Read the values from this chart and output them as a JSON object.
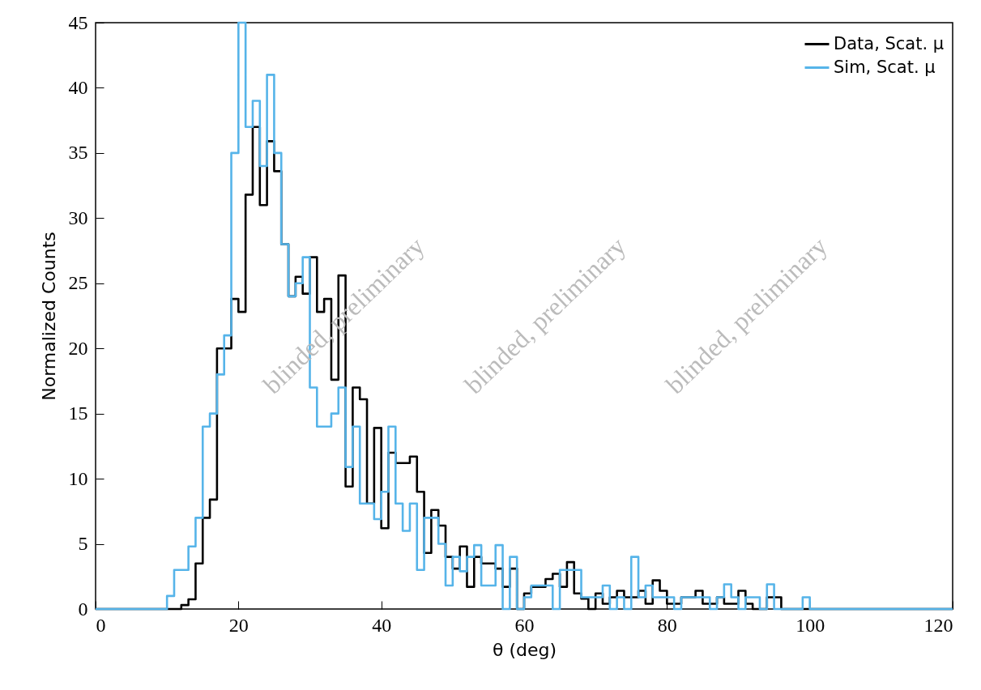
{
  "chart_data": {
    "type": "histogram",
    "xlabel": "θ (deg)",
    "ylabel": "Normalized Counts",
    "bins": [
      0,
      1,
      2,
      3,
      4,
      5,
      6,
      7,
      8,
      9,
      10,
      11,
      12,
      13,
      14,
      15,
      16,
      17,
      18,
      19,
      20,
      21,
      22,
      23,
      24,
      25,
      26,
      27,
      28,
      29,
      30,
      31,
      32,
      33,
      34,
      35,
      36,
      37,
      38,
      39,
      40,
      41,
      42,
      43,
      44,
      45,
      46,
      47,
      48,
      49,
      50,
      51,
      52,
      53,
      54,
      55,
      56,
      57,
      58,
      59,
      60,
      61,
      62,
      63,
      64,
      65,
      66,
      67,
      68,
      69,
      70,
      71,
      72,
      73,
      74,
      75,
      76,
      77,
      78,
      79,
      80,
      81,
      82,
      83,
      84,
      85,
      86,
      87,
      88,
      89,
      90,
      91,
      92,
      93,
      94,
      95,
      96,
      97,
      98,
      99,
      100,
      101,
      102,
      103,
      104,
      105,
      106,
      107,
      108,
      109,
      110,
      111,
      112,
      113,
      114,
      115,
      116,
      117,
      118,
      119,
      120
    ],
    "series": [
      {
        "name": "Data, Scat. μ",
        "color": "#000000",
        "values": [
          0,
          0,
          0,
          0,
          0,
          0,
          0,
          0,
          0,
          0,
          0,
          0,
          0.3,
          0.75,
          3.5,
          7,
          8.4,
          20,
          20,
          23.8,
          22.8,
          31.8,
          37,
          31,
          35.9,
          33.6,
          28,
          24,
          25.5,
          24.2,
          27,
          22.8,
          23.8,
          17.6,
          25.6,
          9.4,
          17,
          16.1,
          8.1,
          13.9,
          6.2,
          12,
          11.2,
          11.2,
          11.7,
          9,
          4.3,
          7.6,
          6.4,
          4,
          3.1,
          4.8,
          1.7,
          4,
          3.5,
          3.5,
          3.1,
          1.7,
          3.1,
          0,
          1.2,
          1.7,
          1.7,
          2.3,
          2.7,
          1.7,
          3.6,
          1.2,
          0.8,
          0,
          1.2,
          0.4,
          0.9,
          1.4,
          0.9,
          0.9,
          1.4,
          0.4,
          2.2,
          1.4,
          0.4,
          0.4,
          0.9,
          0.9,
          1.4,
          0.4,
          0.4,
          0.9,
          0.4,
          0.4,
          1.4,
          0.4,
          0,
          0,
          0.9,
          0.9,
          0,
          0,
          0,
          0,
          0,
          0,
          0,
          0,
          0,
          0,
          0,
          0,
          0,
          0,
          0,
          0,
          0,
          0,
          0,
          0,
          0,
          0,
          0,
          0
        ]
      },
      {
        "name": "Sim, Scat. μ",
        "color": "#56b4e9",
        "values": [
          0,
          0,
          0,
          0,
          0,
          0,
          0,
          0,
          0,
          0,
          1,
          3,
          3,
          4.8,
          7,
          14,
          15,
          18,
          21,
          35,
          45,
          37,
          39,
          34,
          41,
          35,
          28,
          24,
          25,
          27,
          17,
          14,
          14,
          15,
          17,
          10.9,
          14,
          8.1,
          8.1,
          6.9,
          9,
          14,
          8.1,
          6,
          8.1,
          3,
          7,
          7,
          5,
          1.8,
          4,
          2.9,
          4,
          4.9,
          1.8,
          1.8,
          4.9,
          0,
          4,
          0,
          0.9,
          1.8,
          1.8,
          1.8,
          0,
          3,
          3,
          3,
          0.9,
          0.9,
          0.9,
          1.8,
          0,
          0.9,
          0,
          4,
          0.9,
          1.8,
          0.9,
          0.9,
          0.9,
          0,
          0.9,
          0.9,
          0.9,
          0.9,
          0,
          0.9,
          1.9,
          0.9,
          0,
          0.9,
          0.9,
          0,
          1.9,
          0,
          0,
          0,
          0,
          0.9,
          0,
          0,
          0,
          0,
          0,
          0,
          0,
          0,
          0,
          0,
          0,
          0,
          0,
          0,
          0,
          0,
          0,
          0,
          0,
          0
        ]
      }
    ],
    "xlim": [
      0,
      120
    ],
    "xticks": [
      0,
      20,
      40,
      60,
      80,
      100,
      120
    ],
    "ylim": [
      0,
      45
    ],
    "yticks": [
      0,
      5,
      10,
      15,
      20,
      25,
      30,
      35,
      40,
      45
    ],
    "legend": "top right",
    "line_style": "solid",
    "marker": "none",
    "annotations": [
      "blinded, preliminary",
      "blinded, preliminary",
      "blinded, preliminary"
    ]
  }
}
